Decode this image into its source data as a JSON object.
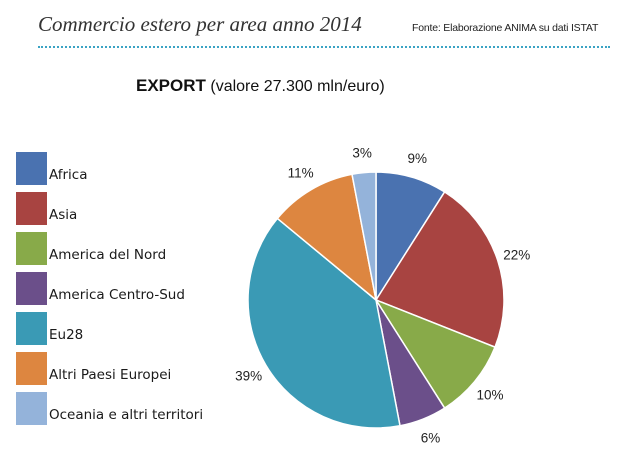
{
  "header": {
    "title": "Commercio estero per area anno 2014",
    "source": "Fonte: Elaborazione ANIMA su dati ISTAT"
  },
  "chart_data": {
    "type": "pie",
    "title_bold": "EXPORT",
    "title_rest": "(valore 27.300 mln/euro)",
    "legend_position": "left",
    "slices": [
      {
        "label": "Africa",
        "value": 9,
        "color": "#4a72b0"
      },
      {
        "label": "Asia",
        "value": 22,
        "color": "#a84441"
      },
      {
        "label": "America del Nord",
        "value": 10,
        "color": "#88aa49"
      },
      {
        "label": "America Centro-Sud",
        "value": 6,
        "color": "#6b4f8a"
      },
      {
        "label": "Eu28",
        "value": 39,
        "color": "#3a9ab5"
      },
      {
        "label": "Altri Paesi Europei",
        "value": 11,
        "color": "#dd8640"
      },
      {
        "label": "Oceania e altri territori",
        "value": 3,
        "color": "#94b3da"
      }
    ],
    "value_labels": [
      "9%",
      "22%",
      "10%",
      "6%",
      "39%",
      "11%",
      "3%"
    ]
  }
}
